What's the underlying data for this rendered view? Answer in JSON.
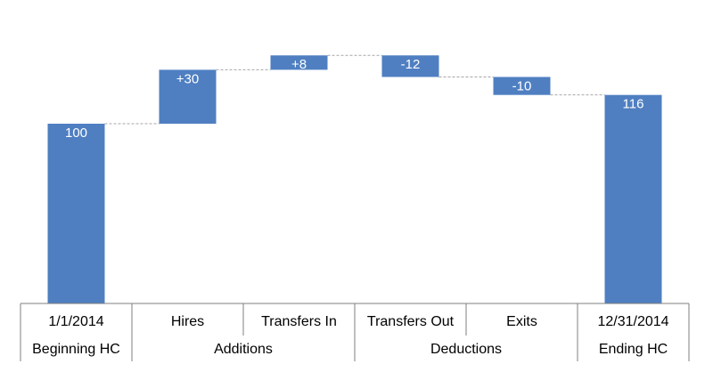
{
  "chart_data": {
    "type": "bar",
    "subtype": "waterfall",
    "categories": [
      "1/1/2014",
      "Hires",
      "Transfers In",
      "Transfers Out",
      "Exits",
      "12/31/2014"
    ],
    "groups": [
      {
        "label": "Beginning HC",
        "categories": [
          "1/1/2014"
        ]
      },
      {
        "label": "Additions",
        "categories": [
          "Hires",
          "Transfers In"
        ]
      },
      {
        "label": "Deductions",
        "categories": [
          "Transfers Out",
          "Exits"
        ]
      },
      {
        "label": "Ending HC",
        "categories": [
          "12/31/2014"
        ]
      }
    ],
    "values": [
      100,
      30,
      8,
      -12,
      -10,
      116
    ],
    "data_labels": [
      "100",
      "+30",
      "+8",
      "-12",
      "-10",
      "116"
    ],
    "bar_kinds": [
      "total",
      "delta",
      "delta",
      "delta",
      "delta",
      "total"
    ],
    "ylim": [
      0,
      126
    ],
    "connector_lines": "dashed",
    "bar_color": "#4f7fc1",
    "label_color": "#ffffff",
    "title": "",
    "xlabel": "",
    "ylabel": ""
  }
}
